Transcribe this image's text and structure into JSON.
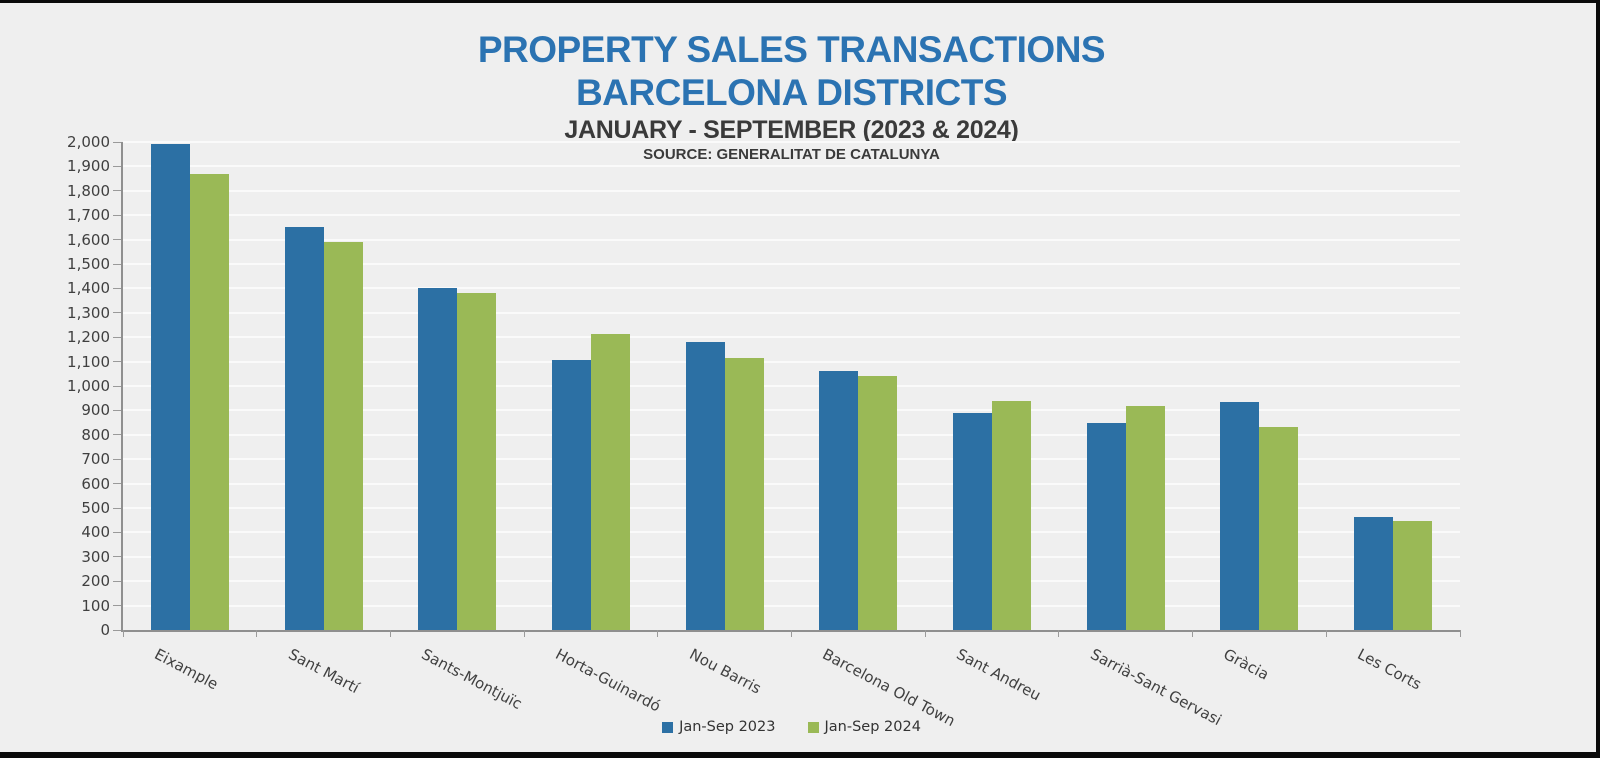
{
  "header": {
    "title_line1": "PROPERTY SALES TRANSACTIONS",
    "title_line2": "BARCELONA DISTRICTS",
    "subtitle": "JANUARY - SEPTEMBER (2023 & 2024)",
    "source": "SOURCE: GENERALITAT DE CATALUNYA"
  },
  "colors": {
    "background": "#EFEFEF",
    "frame_border": "#0A0A0A",
    "title_blue": "#2B73B2",
    "subtitle_dark": "#3A3A3A",
    "bar_2023_blue": "#2C70A4",
    "bar_2024_green": "#9AB956",
    "axis_gray": "#8F8F8F",
    "tick_label_gray": "#404040"
  },
  "chart_data": {
    "type": "bar",
    "title": "PROPERTY SALES TRANSACTIONS BARCELONA DISTRICTS",
    "subtitle": "JANUARY - SEPTEMBER (2023 & 2024)",
    "annotation": "SOURCE: GENERALITAT DE CATALUNYA",
    "categories": [
      "Eixample",
      "Sant Martí",
      "Sants-Montjuïc",
      "Horta-Guinardó",
      "Nou Barris",
      "Barcelona Old Town",
      "Sant Andreu",
      "Sarrià-Sant Gervasi",
      "Gràcia",
      "Les Corts"
    ],
    "series": [
      {
        "name": "Jan-Sep 2023",
        "color": "#2C70A4",
        "values": [
          1990,
          1650,
          1400,
          1105,
          1180,
          1060,
          890,
          850,
          935,
          465
        ]
      },
      {
        "name": "Jan-Sep 2024",
        "color": "#9AB956",
        "values": [
          1870,
          1590,
          1380,
          1215,
          1115,
          1040,
          940,
          920,
          830,
          445
        ]
      }
    ],
    "xlabel": "",
    "ylabel": "",
    "ylim": [
      0,
      2000
    ],
    "ytick_step": 100,
    "y_tick_labels": [
      "0",
      "100",
      "200",
      "300",
      "400",
      "500",
      "600",
      "700",
      "800",
      "900",
      "1,000",
      "1,100",
      "1,200",
      "1,300",
      "1,400",
      "1,500",
      "1,600",
      "1,700",
      "1,800",
      "1,900",
      "2,000"
    ],
    "grid": true,
    "legend_position": "bottom"
  }
}
